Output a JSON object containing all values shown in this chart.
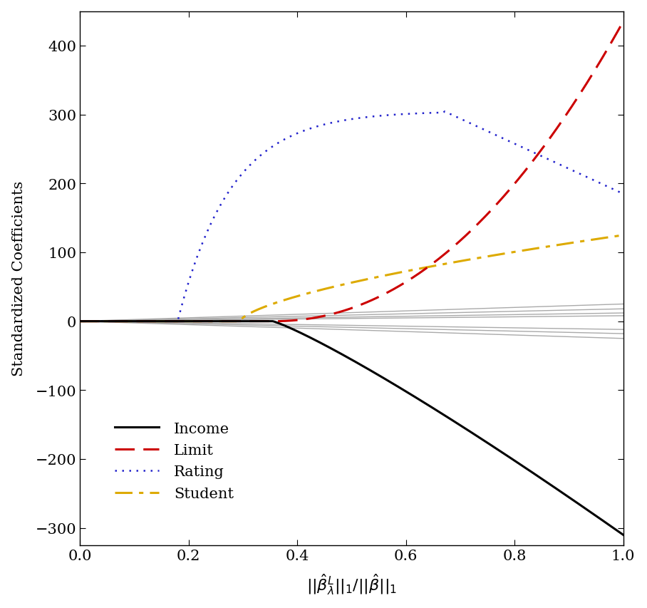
{
  "xlabel": "$||\\hat{\\beta}_\\lambda^L||_1/||\\hat{\\beta}||_1$",
  "ylabel": "Standardized Coefficients",
  "xlim": [
    0.0,
    1.0
  ],
  "ylim": [
    -325,
    450
  ],
  "yticks": [
    -300,
    -200,
    -100,
    0,
    100,
    200,
    300,
    400
  ],
  "xticks": [
    0.0,
    0.2,
    0.4,
    0.6,
    0.8,
    1.0
  ],
  "background_color": "#ffffff",
  "line_colors": {
    "Income": "#000000",
    "Limit": "#cc0000",
    "Rating": "#2222cc",
    "Student": "#ddaa00",
    "others": "#aaaaaa"
  },
  "figsize": [
    9.08,
    8.54
  ],
  "dpi": 100
}
